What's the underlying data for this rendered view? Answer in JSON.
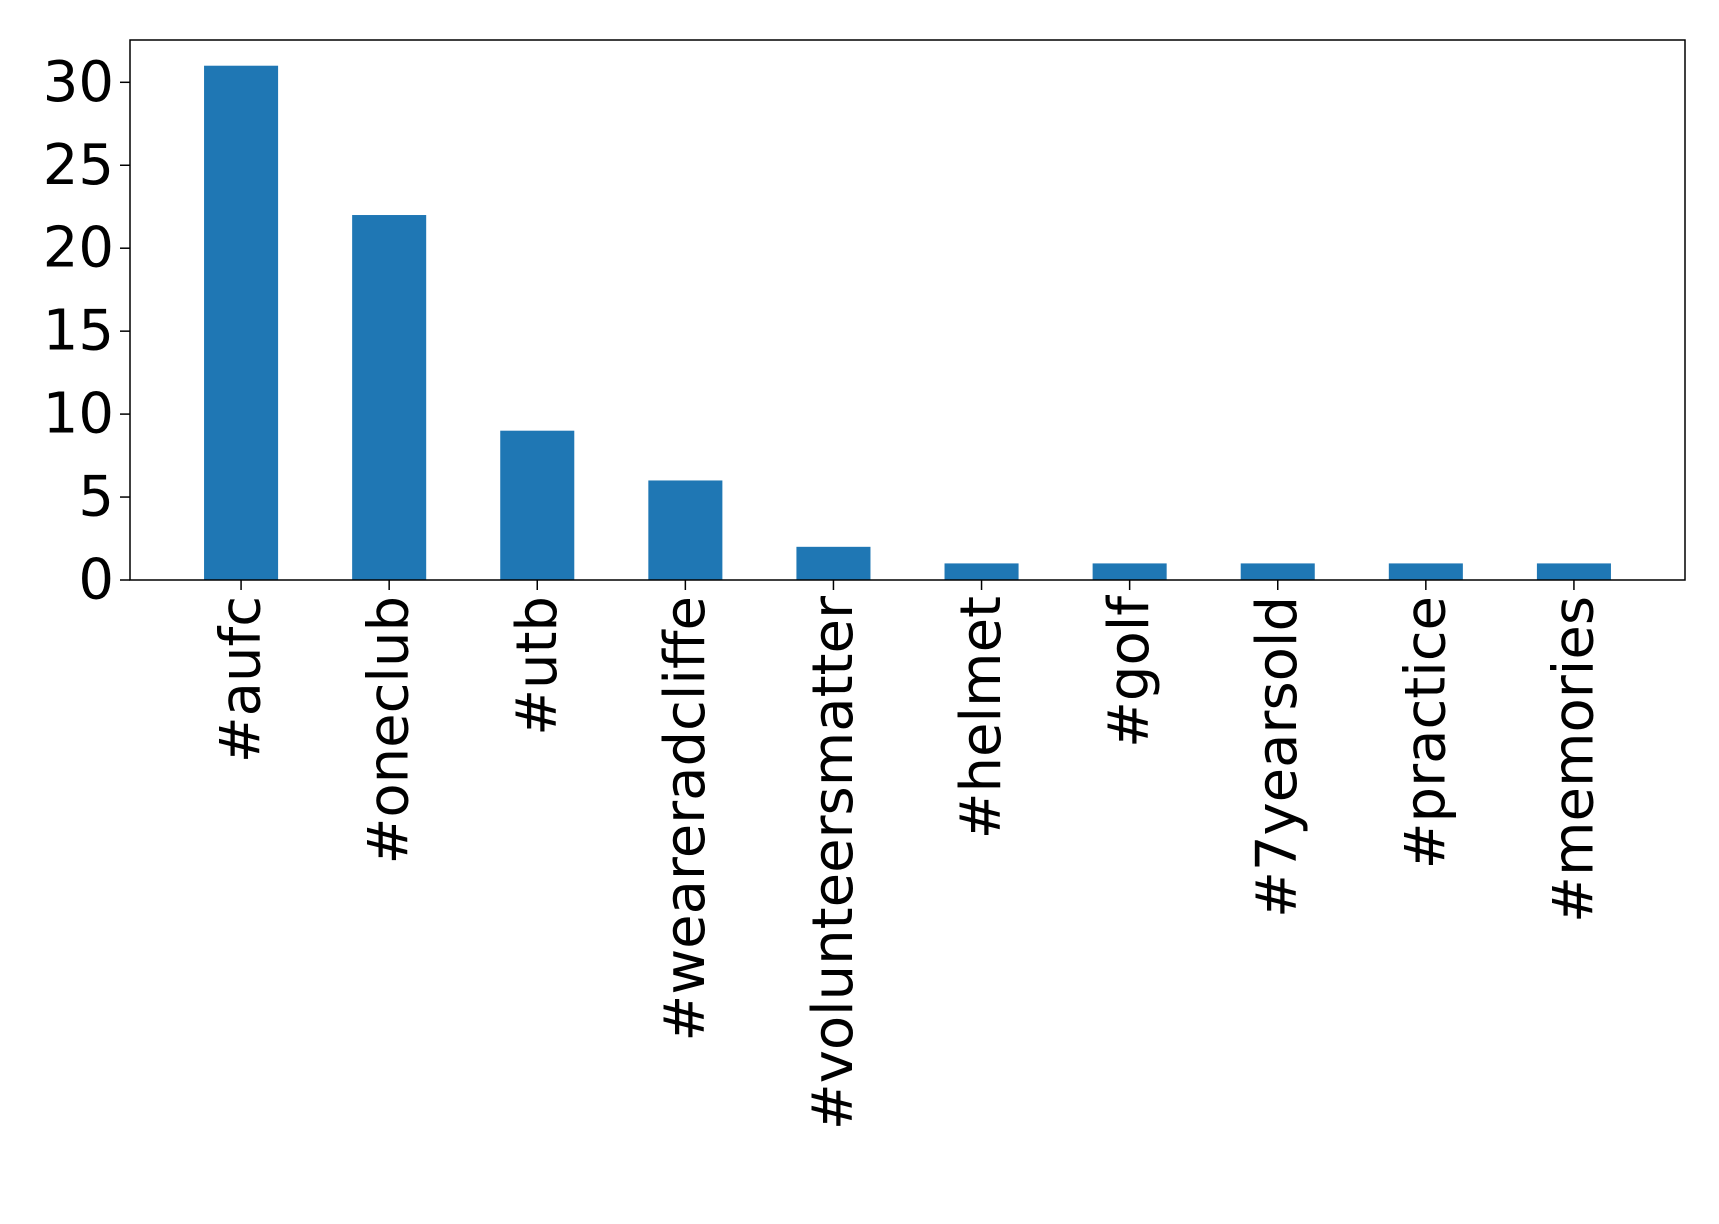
{
  "chart_data": {
    "type": "bar",
    "categories": [
      "#aufc",
      "#oneclub",
      "#utb",
      "#weareradcliffe",
      "#volunteersmatter",
      "#helmet",
      "#golf",
      "#7yearsold",
      "#practice",
      "#memories"
    ],
    "values": [
      31,
      22,
      9,
      6,
      2,
      1,
      1,
      1,
      1,
      1
    ],
    "title": "",
    "xlabel": "",
    "ylabel": "",
    "ylim": [
      0,
      32.55
    ],
    "yticks": [
      0,
      5,
      10,
      15,
      20,
      25,
      30
    ],
    "grid": false,
    "legend": "none",
    "bar_color": "#1f77b4",
    "axis_color": "#000000"
  }
}
